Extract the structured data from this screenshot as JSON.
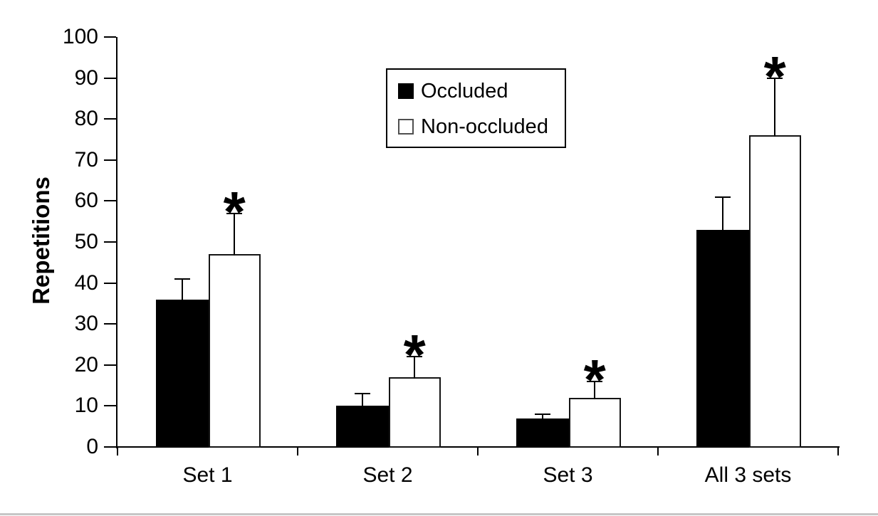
{
  "page": {
    "background": "#ffffff",
    "ink_color": "#000000",
    "bottom_rule_color": "#c6c6c6"
  },
  "chart_data": {
    "type": "bar",
    "title": "",
    "xlabel": "",
    "ylabel": "Repetitions",
    "ylim": [
      0,
      100
    ],
    "yticks": [
      0,
      10,
      20,
      30,
      40,
      50,
      60,
      70,
      80,
      90,
      100
    ],
    "grid": "off",
    "categories": [
      "Set 1",
      "Set 2",
      "Set 3",
      "All 3 sets"
    ],
    "series": [
      {
        "name": "Occluded",
        "fill": "#000000",
        "values": [
          36,
          10,
          7,
          53
        ],
        "error_plus": [
          5,
          3,
          1,
          8
        ]
      },
      {
        "name": "Non-occluded",
        "fill": "#ffffff",
        "values": [
          47,
          17,
          12,
          76
        ],
        "error_plus": [
          10,
          5,
          4,
          14
        ],
        "significance": [
          "*",
          "*",
          "*",
          "*"
        ]
      }
    ],
    "significance_marker": "*",
    "legend": {
      "position": "top-center",
      "items": [
        "Occluded",
        "Non-occluded"
      ]
    }
  }
}
